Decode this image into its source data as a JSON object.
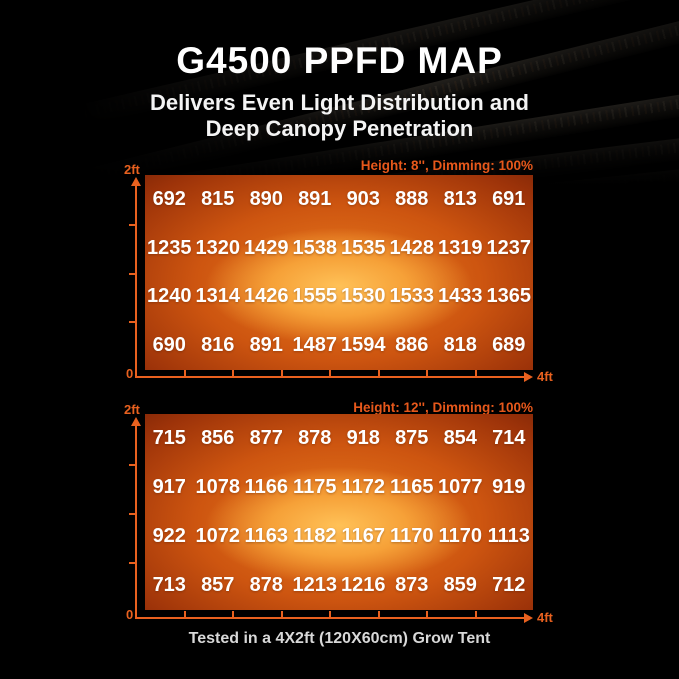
{
  "page": {
    "title": "G4500 PPFD MAP",
    "subtitle_line1": "Delivers Even Light Distribution and",
    "subtitle_line2": "Deep Canopy Penetration",
    "footer": "Tested in a 4X2ft (120X60cm) Grow Tent"
  },
  "colors": {
    "accent_orange": "#e8611f",
    "header_orange": "#e7581b",
    "value_text": "#ffffff",
    "background": "#000000",
    "heat_center": "#ffc157",
    "heat_mid": "#cd5510",
    "heat_edge": "#6b1c05"
  },
  "chart_data": [
    {
      "type": "heatmap",
      "title": "Height: 8'', Dimming: 100%",
      "x_axis": {
        "start_label": "0",
        "end_label": "4ft",
        "range_ft": [
          0,
          4
        ],
        "ticks": 8
      },
      "y_axis": {
        "end_label": "2ft",
        "range_ft": [
          0,
          2
        ],
        "ticks": 4
      },
      "rows": [
        [
          692,
          815,
          890,
          891,
          903,
          888,
          813,
          691
        ],
        [
          1235,
          1320,
          1429,
          1538,
          1535,
          1428,
          1319,
          1237
        ],
        [
          1240,
          1314,
          1426,
          1555,
          1530,
          1533,
          1433,
          1365
        ],
        [
          690,
          816,
          891,
          1487,
          1594,
          886,
          818,
          689
        ]
      ]
    },
    {
      "type": "heatmap",
      "title": "Height: 12'', Dimming: 100%",
      "x_axis": {
        "start_label": "0",
        "end_label": "4ft",
        "range_ft": [
          0,
          4
        ],
        "ticks": 8
      },
      "y_axis": {
        "end_label": "2ft",
        "range_ft": [
          0,
          2
        ],
        "ticks": 4
      },
      "rows": [
        [
          715,
          856,
          877,
          878,
          918,
          875,
          854,
          714
        ],
        [
          917,
          1078,
          1166,
          1175,
          1172,
          1165,
          1077,
          919
        ],
        [
          922,
          1072,
          1163,
          1182,
          1167,
          1170,
          1170,
          1113
        ],
        [
          713,
          857,
          878,
          1213,
          1216,
          873,
          859,
          712
        ]
      ]
    }
  ]
}
